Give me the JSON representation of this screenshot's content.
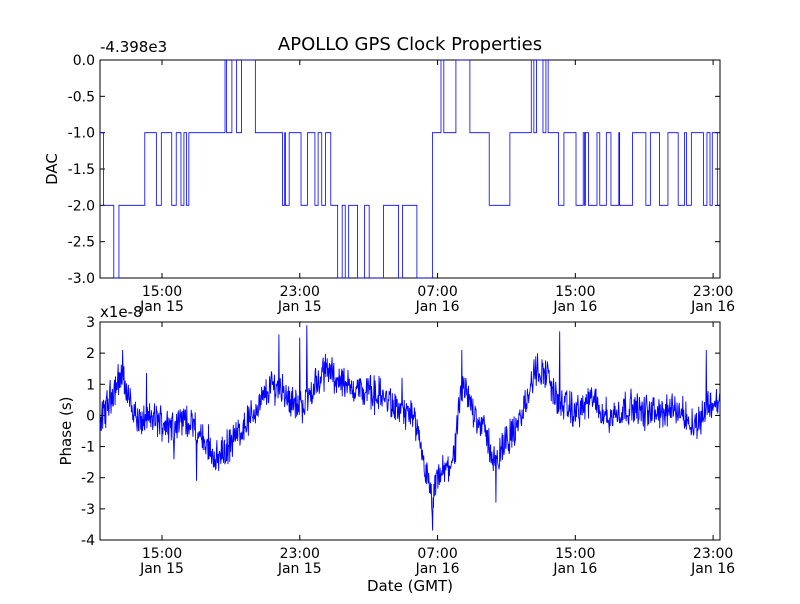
{
  "chart_data": {
    "title": "APOLLO GPS Clock Properties",
    "xlabel": "Date (GMT)",
    "x_ticks": [
      {
        "time": "15:00",
        "date": "Jan 15",
        "hours": 15
      },
      {
        "time": "23:00",
        "date": "Jan 15",
        "hours": 23
      },
      {
        "time": "07:00",
        "date": "Jan 16",
        "hours": 31
      },
      {
        "time": "15:00",
        "date": "Jan 16",
        "hours": 39
      },
      {
        "time": "23:00",
        "date": "Jan 16",
        "hours": 47
      }
    ],
    "xlim_hours": [
      11.4,
      47.4
    ],
    "panels": [
      {
        "type": "line",
        "ylabel": "DAC",
        "offset_label": "-4.398e3",
        "ylim": [
          -3.0,
          0.0
        ],
        "y_ticks": [
          "0.0",
          "-0.5",
          "-1.0",
          "-1.5",
          "-2.0",
          "-2.5",
          "-3.0"
        ],
        "y_tick_values": [
          0.0,
          -0.5,
          -1.0,
          -1.5,
          -2.0,
          -2.5,
          -3.0
        ],
        "color": "#0000ff",
        "grid": false,
        "segments": [
          {
            "x": [
              11.4,
              11.6
            ],
            "level": -1
          },
          {
            "x": [
              11.6,
              12.2
            ],
            "level": -2
          },
          {
            "x": [
              12.2,
              12.5
            ],
            "level": -3
          },
          {
            "x": [
              12.5,
              14.0
            ],
            "level": -2
          },
          {
            "x": [
              14.0,
              16.8
            ],
            "level": -1,
            "flicker": -2
          },
          {
            "x": [
              16.8,
              18.5
            ],
            "level": -1
          },
          {
            "x": [
              18.5,
              20.6
            ],
            "level": 0,
            "flicker": -1
          },
          {
            "x": [
              20.6,
              22.0
            ],
            "level": -1
          },
          {
            "x": [
              22.0,
              24.8
            ],
            "level": -1,
            "flicker": -2
          },
          {
            "x": [
              24.8,
              25.2
            ],
            "level": -2
          },
          {
            "x": [
              25.2,
              29.8
            ],
            "level": -2,
            "flicker": -3
          },
          {
            "x": [
              29.8,
              30.7
            ],
            "level": -3
          },
          {
            "x": [
              30.7,
              31.2
            ],
            "level": -1
          },
          {
            "x": [
              31.2,
              33.0
            ],
            "level": 0,
            "flicker": -1
          },
          {
            "x": [
              33.0,
              34.0
            ],
            "level": -1
          },
          {
            "x": [
              34.0,
              35.2
            ],
            "level": -2
          },
          {
            "x": [
              35.2,
              36.4
            ],
            "level": -1
          },
          {
            "x": [
              36.4,
              37.6
            ],
            "level": 0,
            "flicker": -1
          },
          {
            "x": [
              37.6,
              40.8
            ],
            "level": -2,
            "flicker": -1
          },
          {
            "x": [
              40.8,
              47.4
            ],
            "level": -1,
            "flicker": -2
          }
        ]
      },
      {
        "type": "line",
        "ylabel": "Phase (s)",
        "offset_label": "x1e-8",
        "ylim": [
          -4,
          3
        ],
        "y_ticks": [
          "3",
          "2",
          "1",
          "0",
          "-1",
          "-2",
          "-3",
          "-4"
        ],
        "y_tick_values": [
          3,
          2,
          1,
          0,
          -1,
          -2,
          -3,
          -4
        ],
        "color": "#0000ff",
        "grid": false,
        "trend": [
          [
            11.4,
            -0.3
          ],
          [
            12.0,
            0.6
          ],
          [
            12.6,
            1.3
          ],
          [
            13.0,
            0.7
          ],
          [
            13.6,
            -0.2
          ],
          [
            14.5,
            -0.1
          ],
          [
            15.5,
            -0.3
          ],
          [
            16.5,
            -0.1
          ],
          [
            17.5,
            -0.9
          ],
          [
            18.2,
            -1.4
          ],
          [
            19.0,
            -0.9
          ],
          [
            19.8,
            -0.3
          ],
          [
            20.6,
            0.3
          ],
          [
            21.4,
            1.0
          ],
          [
            22.0,
            0.8
          ],
          [
            23.0,
            0.2
          ],
          [
            23.8,
            0.9
          ],
          [
            24.6,
            1.5
          ],
          [
            25.6,
            1.0
          ],
          [
            26.6,
            0.8
          ],
          [
            27.6,
            0.7
          ],
          [
            28.6,
            0.2
          ],
          [
            29.5,
            0.0
          ],
          [
            30.2,
            -1.5
          ],
          [
            30.7,
            -2.9
          ],
          [
            31.0,
            -2.0
          ],
          [
            31.6,
            -1.7
          ],
          [
            32.0,
            -1.2
          ],
          [
            32.4,
            0.9
          ],
          [
            33.0,
            0.3
          ],
          [
            33.8,
            -0.6
          ],
          [
            34.4,
            -1.6
          ],
          [
            35.0,
            -0.7
          ],
          [
            35.6,
            -0.5
          ],
          [
            36.2,
            0.6
          ],
          [
            36.8,
            1.5
          ],
          [
            37.4,
            1.3
          ],
          [
            38.0,
            0.4
          ],
          [
            39.0,
            0.1
          ],
          [
            40.0,
            0.5
          ],
          [
            41.0,
            -0.1
          ],
          [
            42.0,
            0.3
          ],
          [
            43.0,
            0.1
          ],
          [
            44.0,
            0.1
          ],
          [
            45.0,
            0.2
          ],
          [
            46.0,
            -0.3
          ],
          [
            46.8,
            0.4
          ],
          [
            47.4,
            0.4
          ]
        ],
        "spikes": [
          [
            21.8,
            2.6
          ],
          [
            23.0,
            2.5
          ],
          [
            23.4,
            2.9
          ],
          [
            12.7,
            2.1
          ],
          [
            17.0,
            -2.1
          ],
          [
            30.7,
            -3.7
          ],
          [
            32.4,
            2.1
          ],
          [
            34.4,
            -2.8
          ],
          [
            38.1,
            2.7
          ],
          [
            46.6,
            2.1
          ],
          [
            36.6,
            1.8
          ]
        ]
      }
    ]
  }
}
